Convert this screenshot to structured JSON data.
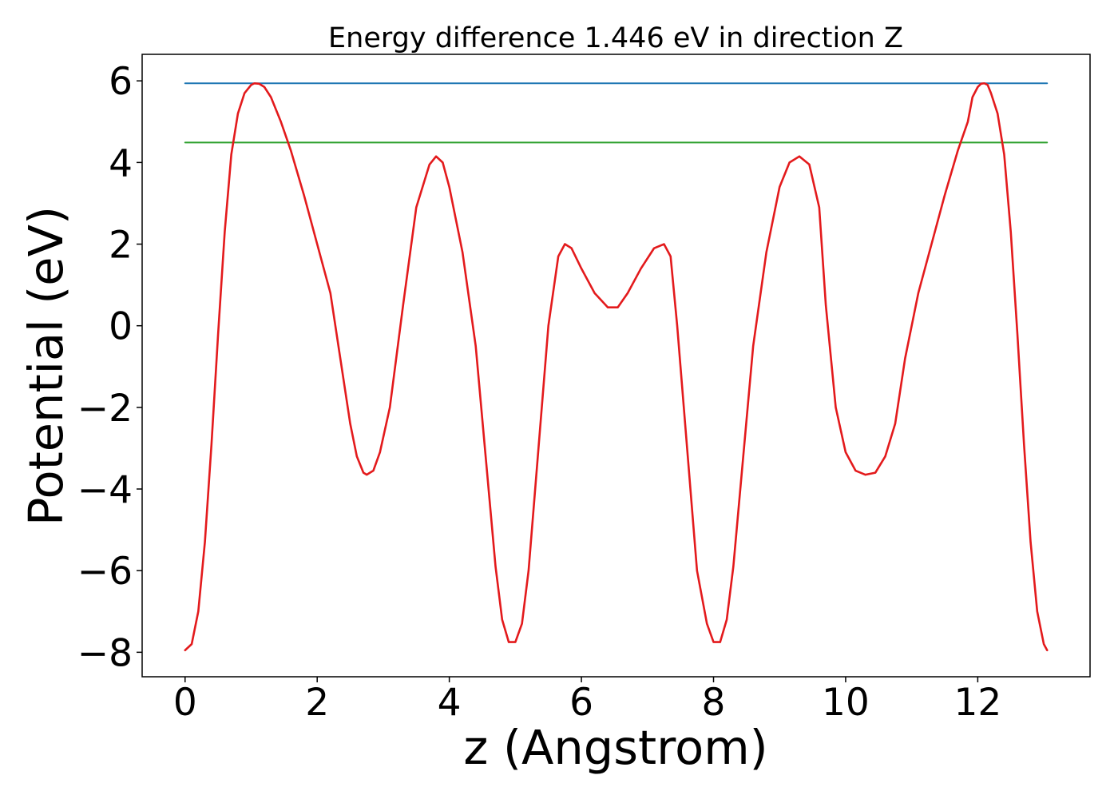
{
  "chart_data": {
    "type": "line",
    "title": "Energy difference 1.446 eV in direction Z",
    "xlabel": "z (Angstrom)",
    "ylabel": "Potential (eV)",
    "xlim": [
      -0.65,
      13.7
    ],
    "ylim": [
      -8.6,
      6.65
    ],
    "xticks": [
      0,
      2,
      4,
      6,
      8,
      10,
      12
    ],
    "yticks": [
      -8,
      -6,
      -4,
      -2,
      0,
      2,
      4,
      6
    ],
    "xtick_labels": [
      "0",
      "2",
      "4",
      "6",
      "8",
      "10",
      "12"
    ],
    "ytick_labels": [
      "−8",
      "−6",
      "−4",
      "−2",
      "0",
      "2",
      "4",
      "6"
    ],
    "grid": false,
    "legend": false,
    "series": [
      {
        "color": "#1f77b4",
        "x": [
          0,
          13.05
        ],
        "y": [
          5.94,
          5.94
        ]
      },
      {
        "color": "#2ca02c",
        "x": [
          0,
          13.05
        ],
        "y": [
          4.49,
          4.49
        ]
      },
      {
        "color": "#e31a1c",
        "x": [
          0,
          0.1,
          0.2,
          0.3,
          0.4,
          0.5,
          0.6,
          0.7,
          0.8,
          0.9,
          1.0,
          1.05,
          1.12,
          1.2,
          1.3,
          1.45,
          1.6,
          1.8,
          2.0,
          2.2,
          2.35,
          2.5,
          2.6,
          2.7,
          2.75,
          2.85,
          2.95,
          3.1,
          3.3,
          3.5,
          3.7,
          3.8,
          3.9,
          4.0,
          4.2,
          4.4,
          4.55,
          4.7,
          4.8,
          4.9,
          5.0,
          5.1,
          5.2,
          5.35,
          5.5,
          5.65,
          5.75,
          5.85,
          6.0,
          6.2,
          6.4,
          6.55,
          6.7,
          6.9,
          7.1,
          7.25,
          7.35,
          7.45,
          7.6,
          7.75,
          7.9,
          8.0,
          8.1,
          8.2,
          8.3,
          8.45,
          8.6,
          8.8,
          9.0,
          9.15,
          9.3,
          9.45,
          9.6,
          9.7,
          9.85,
          10.0,
          10.15,
          10.3,
          10.45,
          10.6,
          10.75,
          10.9,
          11.1,
          11.3,
          11.5,
          11.7,
          11.85,
          11.92,
          12.0,
          12.05,
          12.1,
          12.15,
          12.2,
          12.3,
          12.4,
          12.5,
          12.6,
          12.7,
          12.8,
          12.9,
          13.0,
          13.05
        ],
        "y": [
          -7.95,
          -7.8,
          -7.0,
          -5.3,
          -2.9,
          -0.2,
          2.3,
          4.2,
          5.2,
          5.7,
          5.9,
          5.94,
          5.93,
          5.85,
          5.6,
          5.0,
          4.3,
          3.2,
          2.0,
          0.8,
          -0.8,
          -2.4,
          -3.2,
          -3.6,
          -3.65,
          -3.55,
          -3.1,
          -2.0,
          0.5,
          2.9,
          3.95,
          4.15,
          4.0,
          3.4,
          1.8,
          -0.5,
          -3.2,
          -5.9,
          -7.2,
          -7.75,
          -7.75,
          -7.3,
          -6.0,
          -3.0,
          0.0,
          1.7,
          2.0,
          1.9,
          1.4,
          0.8,
          0.45,
          0.45,
          0.8,
          1.4,
          1.9,
          2.0,
          1.7,
          0.0,
          -3.0,
          -6.0,
          -7.3,
          -7.75,
          -7.75,
          -7.2,
          -5.9,
          -3.2,
          -0.5,
          1.8,
          3.4,
          4.0,
          4.15,
          3.95,
          2.9,
          0.5,
          -2.0,
          -3.1,
          -3.55,
          -3.65,
          -3.6,
          -3.2,
          -2.4,
          -0.8,
          0.8,
          2.0,
          3.2,
          4.3,
          5.0,
          5.6,
          5.85,
          5.93,
          5.94,
          5.9,
          5.7,
          5.2,
          4.2,
          2.3,
          -0.2,
          -2.9,
          -5.3,
          -7.0,
          -7.8,
          -7.95
        ]
      }
    ]
  }
}
